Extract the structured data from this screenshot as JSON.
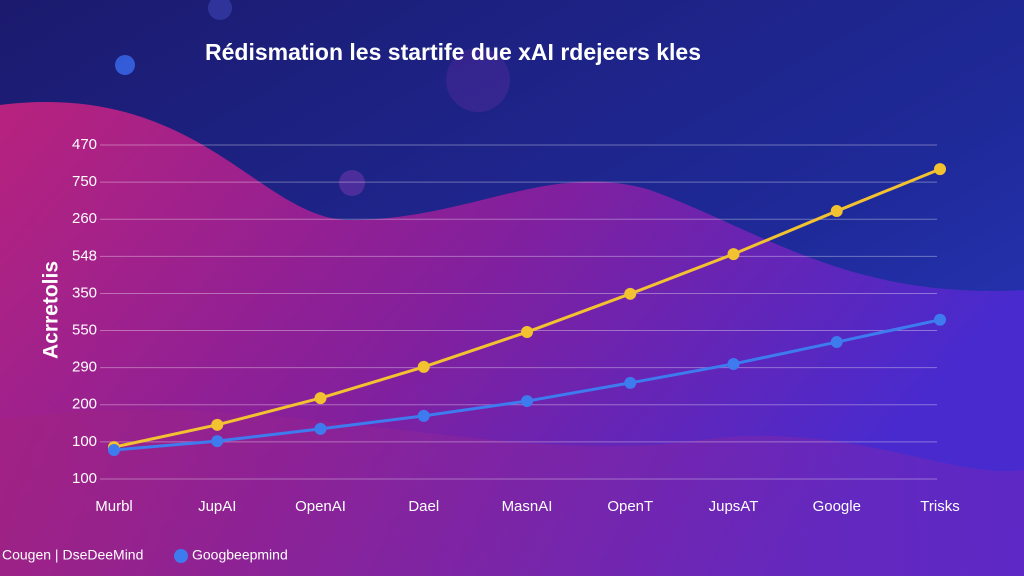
{
  "chart_data": {
    "type": "line",
    "title": "Rédismation les startife due xAI rdejeers kles",
    "y_label": "Acrretolis",
    "categories": [
      "Murbl",
      "JupAI",
      "OpenAI",
      "Dael",
      "MasnAI",
      "OpenT",
      "JupsAT",
      "Google",
      "Trisks"
    ],
    "series": [
      {
        "name": "Cougen | DseDeeMind",
        "color": "#f2c230",
        "values": [
          0.86,
          1.46,
          2.18,
          3.02,
          3.96,
          4.99,
          6.06,
          7.22,
          8.35
        ]
      },
      {
        "name": "Googbeepmind",
        "color": "#3d7bef",
        "values": [
          0.78,
          1.02,
          1.35,
          1.7,
          2.1,
          2.59,
          3.1,
          3.69,
          4.29
        ]
      }
    ],
    "ylim": [
      0,
      9
    ],
    "yticks": [
      {
        "value": 0,
        "label": "100"
      },
      {
        "value": 1,
        "label": "100"
      },
      {
        "value": 2,
        "label": "200"
      },
      {
        "value": 3,
        "label": "290"
      },
      {
        "value": 4,
        "label": "550"
      },
      {
        "value": 5,
        "label": "350"
      },
      {
        "value": 6,
        "label": "548"
      },
      {
        "value": 7,
        "label": "260"
      },
      {
        "value": 8,
        "label": "750"
      },
      {
        "value": 9,
        "label": "470"
      }
    ],
    "grid": true
  }
}
